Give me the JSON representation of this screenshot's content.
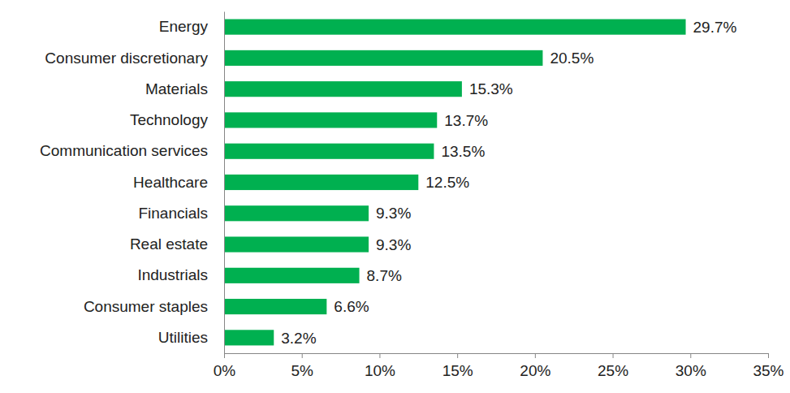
{
  "chart_data": {
    "type": "bar",
    "orientation": "horizontal",
    "categories": [
      "Energy",
      "Consumer discretionary",
      "Materials",
      "Technology",
      "Communication services",
      "Healthcare",
      "Financials",
      "Real estate",
      "Industrials",
      "Consumer staples",
      "Utilities"
    ],
    "values": [
      29.7,
      20.5,
      15.3,
      13.7,
      13.5,
      12.5,
      9.3,
      9.3,
      8.7,
      6.6,
      3.2
    ],
    "value_labels": [
      "29.7%",
      "20.5%",
      "15.3%",
      "13.7%",
      "13.5%",
      "12.5%",
      "9.3%",
      "9.3%",
      "8.7%",
      "6.6%",
      "3.2%"
    ],
    "color": "#00b050",
    "xlim": [
      0,
      35
    ],
    "xticks": [
      {
        "value": 0,
        "label": "0%"
      },
      {
        "value": 5,
        "label": "5%"
      },
      {
        "value": 10,
        "label": "10%"
      },
      {
        "value": 15,
        "label": "15%"
      },
      {
        "value": 20,
        "label": "20%"
      },
      {
        "value": 25,
        "label": "25%"
      },
      {
        "value": 30,
        "label": "30%"
      },
      {
        "value": 35,
        "label": "35%"
      }
    ],
    "grid": false,
    "data_labels": true
  }
}
